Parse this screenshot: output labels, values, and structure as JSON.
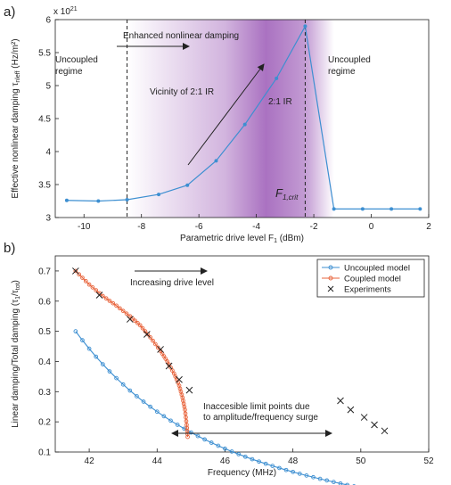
{
  "chart_data": [
    {
      "panel_label": "a)",
      "type": "line",
      "xlabel": "Parametric drive level F",
      "xlabel_sub": "1",
      "xlabel_unit": " (dBm)",
      "ylabel": "Effective nonlinear damping τ",
      "ylabel_sub": "nleff",
      "ylabel_unit": " (Hz/m²)",
      "exponent_label": "x 10",
      "exponent_power": "21",
      "xlim": [
        -11,
        2
      ],
      "ylim": [
        3,
        6
      ],
      "xticks": [
        -10,
        -8,
        -6,
        -4,
        -2,
        0,
        2
      ],
      "yticks": [
        3,
        3.5,
        4,
        4.5,
        5,
        5.5,
        6
      ],
      "grid": false,
      "series": [
        {
          "color": "#3d8fd1",
          "x": [
            -10.6,
            -9.5,
            -8.5,
            -7.4,
            -6.4,
            -5.4,
            -4.4,
            -3.3,
            -2.3,
            -1.3,
            -0.3,
            0.7,
            1.7
          ],
          "y": [
            3.26,
            3.25,
            3.27,
            3.35,
            3.49,
            3.86,
            4.41,
            5.11,
            5.9,
            3.13,
            3.13,
            3.13,
            3.13
          ]
        }
      ],
      "dashed_lines_x": [
        -8.5,
        -2.3
      ],
      "annotations": {
        "uncoupled_left_1": "Uncoupled",
        "uncoupled_left_2": "regime",
        "enhanced": "Enhanced nonlinear damping",
        "vicinity": "Vicinity of 2:1 IR",
        "ir": "2:1 IR",
        "uncoupled_right_1": "Uncoupled",
        "uncoupled_right_2": "regime",
        "fcrit_main": "F",
        "fcrit_sub": "1,crit"
      },
      "shade_color": "#9b59b6"
    },
    {
      "panel_label": "b)",
      "type": "line",
      "xlabel": "Frequency (MHz)",
      "ylabel": "Linear damping/Total damping (τ",
      "ylabel_sub1": "1",
      "ylabel_mid": "/τ",
      "ylabel_sub2": "tot",
      "ylabel_end": ")",
      "xlim": [
        41,
        52
      ],
      "ylim": [
        0.1,
        0.75
      ],
      "xticks": [
        42,
        44,
        46,
        48,
        50,
        52
      ],
      "yticks": [
        0.1,
        0.2,
        0.3,
        0.4,
        0.5,
        0.6,
        0.7
      ],
      "grid": false,
      "legend_position": "top-right",
      "series": [
        {
          "name": "Uncoupled model",
          "color": "#3d8fd1",
          "marker": "circle",
          "model": "uncoupled",
          "x_start": 41.6,
          "x_end": 52.0,
          "x_step": 0.2,
          "a": 1.25,
          "b": 41.6,
          "c": -0.2
        },
        {
          "name": "Coupled model",
          "color": "#e8643c",
          "marker": "circle",
          "x": [
            41.6,
            42.0,
            42.4,
            42.8,
            43.2,
            43.5,
            43.8,
            44.1,
            44.3,
            44.5,
            44.65,
            44.75,
            44.82,
            44.87,
            44.9
          ],
          "y": [
            0.7,
            0.655,
            0.617,
            0.585,
            0.55,
            0.52,
            0.48,
            0.435,
            0.4,
            0.36,
            0.32,
            0.28,
            0.24,
            0.19,
            0.15
          ]
        },
        {
          "name": "Experiments",
          "color": "#222222",
          "marker": "x",
          "x": [
            41.6,
            42.3,
            43.2,
            43.7,
            44.1,
            44.35,
            44.65,
            44.95,
            49.4,
            49.7,
            50.1,
            50.4,
            50.7
          ],
          "y": [
            0.7,
            0.62,
            0.54,
            0.49,
            0.44,
            0.385,
            0.34,
            0.305,
            0.27,
            0.24,
            0.215,
            0.19,
            0.17
          ]
        }
      ],
      "annotations": {
        "increasing": "Increasing drive level",
        "inaccessible_1": "Inaccesible limit points due",
        "inaccessible_2": "to amplitude/frequency surge"
      }
    }
  ]
}
